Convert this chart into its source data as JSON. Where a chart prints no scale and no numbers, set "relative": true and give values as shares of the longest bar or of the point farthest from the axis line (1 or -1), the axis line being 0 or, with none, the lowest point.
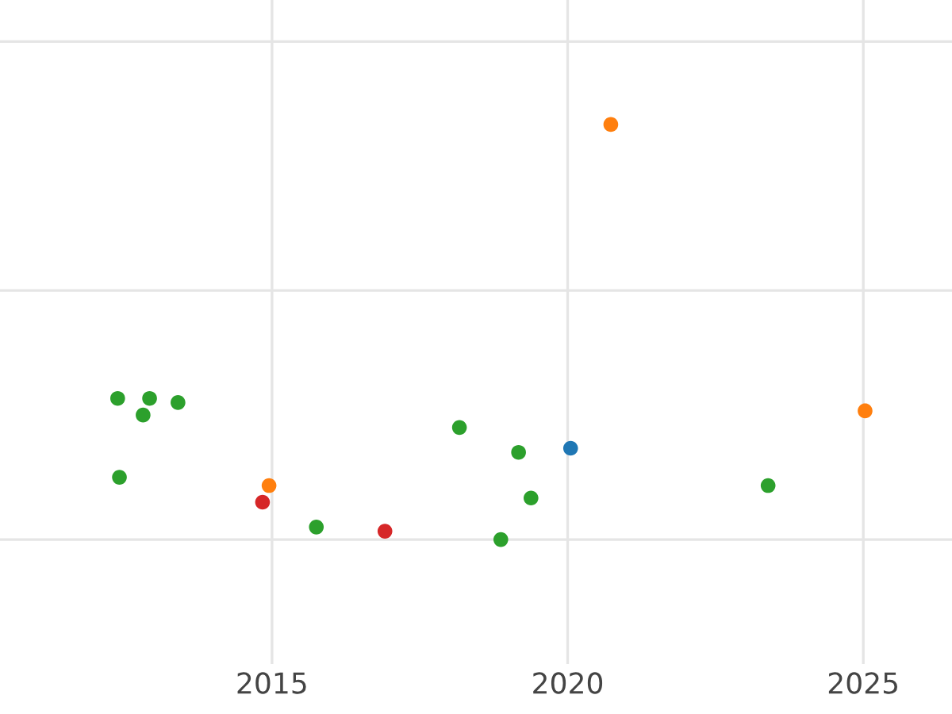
{
  "chart_data": {
    "type": "scatter",
    "relative": true,
    "tick_labels": "x",
    "grid": true,
    "legend": false,
    "marker": "circle",
    "xlim": [
      2010.4,
      2026.5
    ],
    "xticks": [
      2015,
      2020,
      2025
    ],
    "series": [
      {
        "color": "#2ca02c",
        "x": [
          2012.39,
          2012.93,
          2013.41,
          2012.82,
          2012.42,
          2018.17,
          2019.17,
          2019.38,
          2018.87,
          2015.75,
          2023.39
        ],
        "values": [
          0.34,
          0.34,
          0.33,
          0.3,
          0.15,
          0.27,
          0.21,
          0.1,
          0,
          0.03,
          0.13
        ]
      },
      {
        "color": "#ff7f0e",
        "x": [
          2020.73,
          2025.03,
          2014.95
        ],
        "values": [
          1,
          0.31,
          0.13
        ]
      },
      {
        "color": "#d62728",
        "x": [
          2014.84,
          2016.91
        ],
        "values": [
          0.09,
          0.02
        ]
      },
      {
        "color": "#1f77b4",
        "x": [
          2020.05
        ],
        "values": [
          0.22
        ]
      }
    ]
  }
}
